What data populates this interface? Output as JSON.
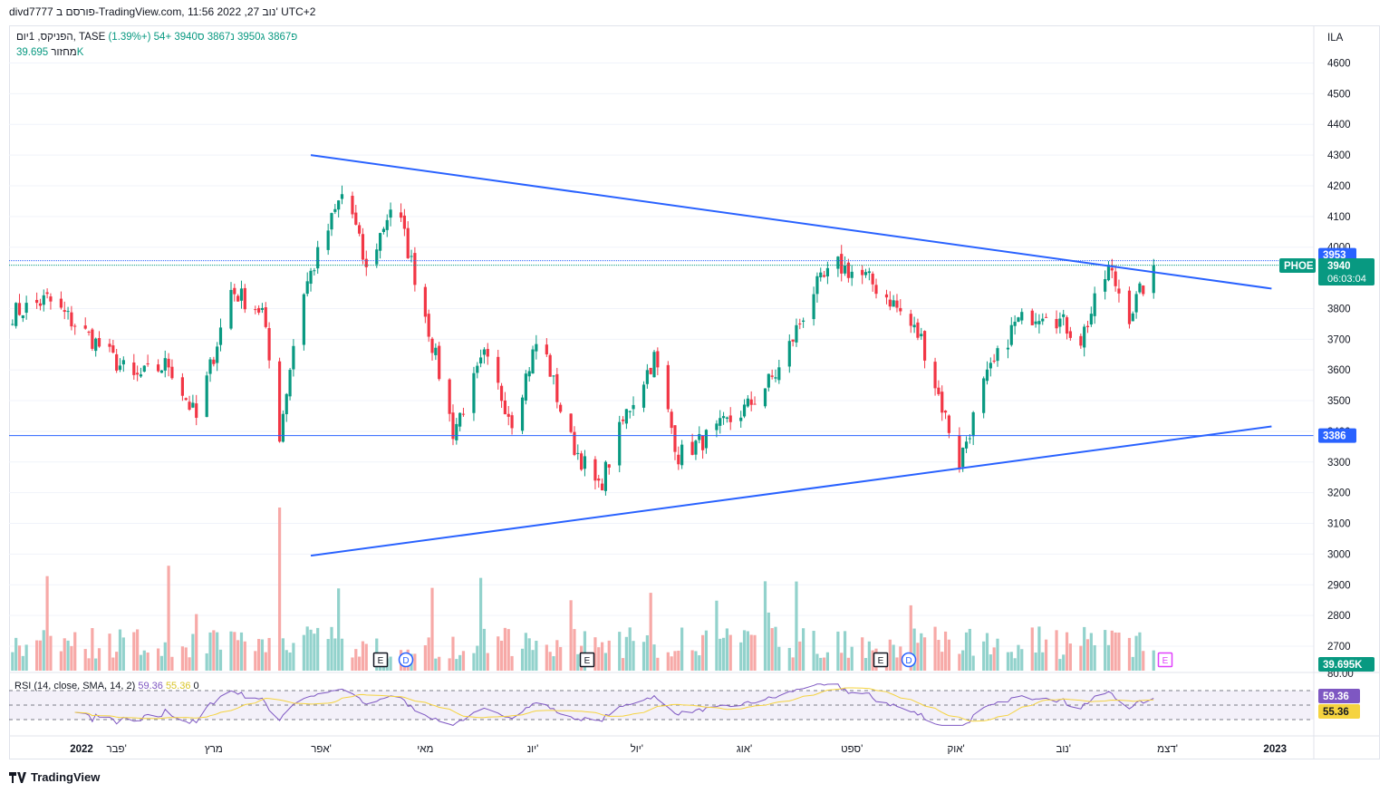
{
  "header": {
    "title": "divd7777 פורסם ב-TradingView.com, 11:56 2022 ,27 נוב' UTC+2"
  },
  "legend": {
    "symbol": "הפניקס, 1יום, TASE",
    "open": "פ3867",
    "high": "ג3950",
    "low": "נ3867",
    "close": "ס3940",
    "change": "+54 (+1.39%)",
    "volume_label": "מחזור",
    "volume_value": "39.695K"
  },
  "rsi_legend": {
    "name": "RSI (14, close, SMA, 14, 2)",
    "rsi": "59.36",
    "sma": "55.36",
    "zero": "0"
  },
  "price_axis": {
    "currency": "ILA",
    "ticks": [
      "4600",
      "4500",
      "4400",
      "4300",
      "4200",
      "4100",
      "4000",
      "3800",
      "3700",
      "3600",
      "3500",
      "3400",
      "3300",
      "3200",
      "3100",
      "3000",
      "2900",
      "2800",
      "2700"
    ],
    "rsi_top": "80.00"
  },
  "badges": {
    "high_line": "3953",
    "symbol": "PHOE",
    "last_price": "3940",
    "countdown": "06:03:04",
    "low_line": "3386",
    "volume": "39.695K",
    "rsi": "59.36",
    "rsi_sma": "55.36"
  },
  "time_axis": [
    "2022",
    "פבר'",
    "מרץ",
    "אפר'",
    "מאי",
    "יונ'",
    "יול'",
    "אוג'",
    "ספט'",
    "אוק'",
    "נוב'",
    "דצמ'",
    "2023"
  ],
  "markers": [
    {
      "label": "E",
      "type": "earnings"
    },
    {
      "label": "D",
      "type": "dividend"
    },
    {
      "label": "E",
      "type": "earnings"
    },
    {
      "label": "E",
      "type": "earnings"
    },
    {
      "label": "D",
      "type": "dividend"
    },
    {
      "label": "E",
      "type": "earnings-upcoming"
    }
  ],
  "footer": {
    "brand": "TradingView"
  },
  "colors": {
    "up": "#089981",
    "down": "#f23645",
    "up_vol": "#92d2cc",
    "down_vol": "#f7a9a7",
    "trendline": "#2962ff",
    "rsi": "#7e57c2",
    "rsi_sma": "#f5d33f"
  },
  "chart_data": {
    "type": "candlestick",
    "symbol": "PHOE",
    "ylim": [
      2640,
      4680
    ],
    "trendlines": [
      {
        "from": [
          "2022-03-29",
          4300
        ],
        "to": [
          "2022-12-31",
          3865
        ]
      },
      {
        "from": [
          "2022-03-29",
          2995
        ],
        "to": [
          "2022-12-31",
          3416
        ]
      }
    ],
    "horizontal_lines": [
      3953,
      3386
    ],
    "anchors": [
      [
        "2022-01-01",
        3780
      ],
      [
        "2022-01-12",
        3830
      ],
      [
        "2022-01-25",
        3700
      ],
      [
        "2022-02-06",
        3570
      ],
      [
        "2022-02-16",
        3620
      ],
      [
        "2022-02-24",
        3440
      ],
      [
        "2022-03-06",
        3860
      ],
      [
        "2022-03-15",
        3790
      ],
      [
        "2022-03-20",
        3390
      ],
      [
        "2022-03-26",
        3830
      ],
      [
        "2022-04-01",
        4000
      ],
      [
        "2022-04-08",
        4200
      ],
      [
        "2022-04-14",
        3920
      ],
      [
        "2022-04-22",
        4160
      ],
      [
        "2022-05-01",
        3780
      ],
      [
        "2022-05-09",
        3400
      ],
      [
        "2022-05-18",
        3640
      ],
      [
        "2022-05-26",
        3440
      ],
      [
        "2022-06-03",
        3720
      ],
      [
        "2022-06-11",
        3390
      ],
      [
        "2022-06-20",
        3210
      ],
      [
        "2022-06-28",
        3460
      ],
      [
        "2022-07-06",
        3640
      ],
      [
        "2022-07-13",
        3320
      ],
      [
        "2022-07-24",
        3400
      ],
      [
        "2022-08-02",
        3480
      ],
      [
        "2022-08-11",
        3600
      ],
      [
        "2022-08-21",
        3860
      ],
      [
        "2022-08-28",
        3940
      ],
      [
        "2022-09-05",
        3900
      ],
      [
        "2022-09-12",
        3830
      ],
      [
        "2022-09-21",
        3700
      ],
      [
        "2022-10-02",
        3300
      ],
      [
        "2022-10-09",
        3550
      ],
      [
        "2022-10-18",
        3750
      ],
      [
        "2022-10-27",
        3800
      ],
      [
        "2022-11-06",
        3700
      ],
      [
        "2022-11-14",
        3930
      ],
      [
        "2022-11-20",
        3780
      ],
      [
        "2022-11-27",
        3940
      ]
    ],
    "volume_max": 140,
    "rsi_ylim": [
      20,
      80
    ],
    "rsi_last": 59.36,
    "rsi_sma_last": 55.36
  }
}
